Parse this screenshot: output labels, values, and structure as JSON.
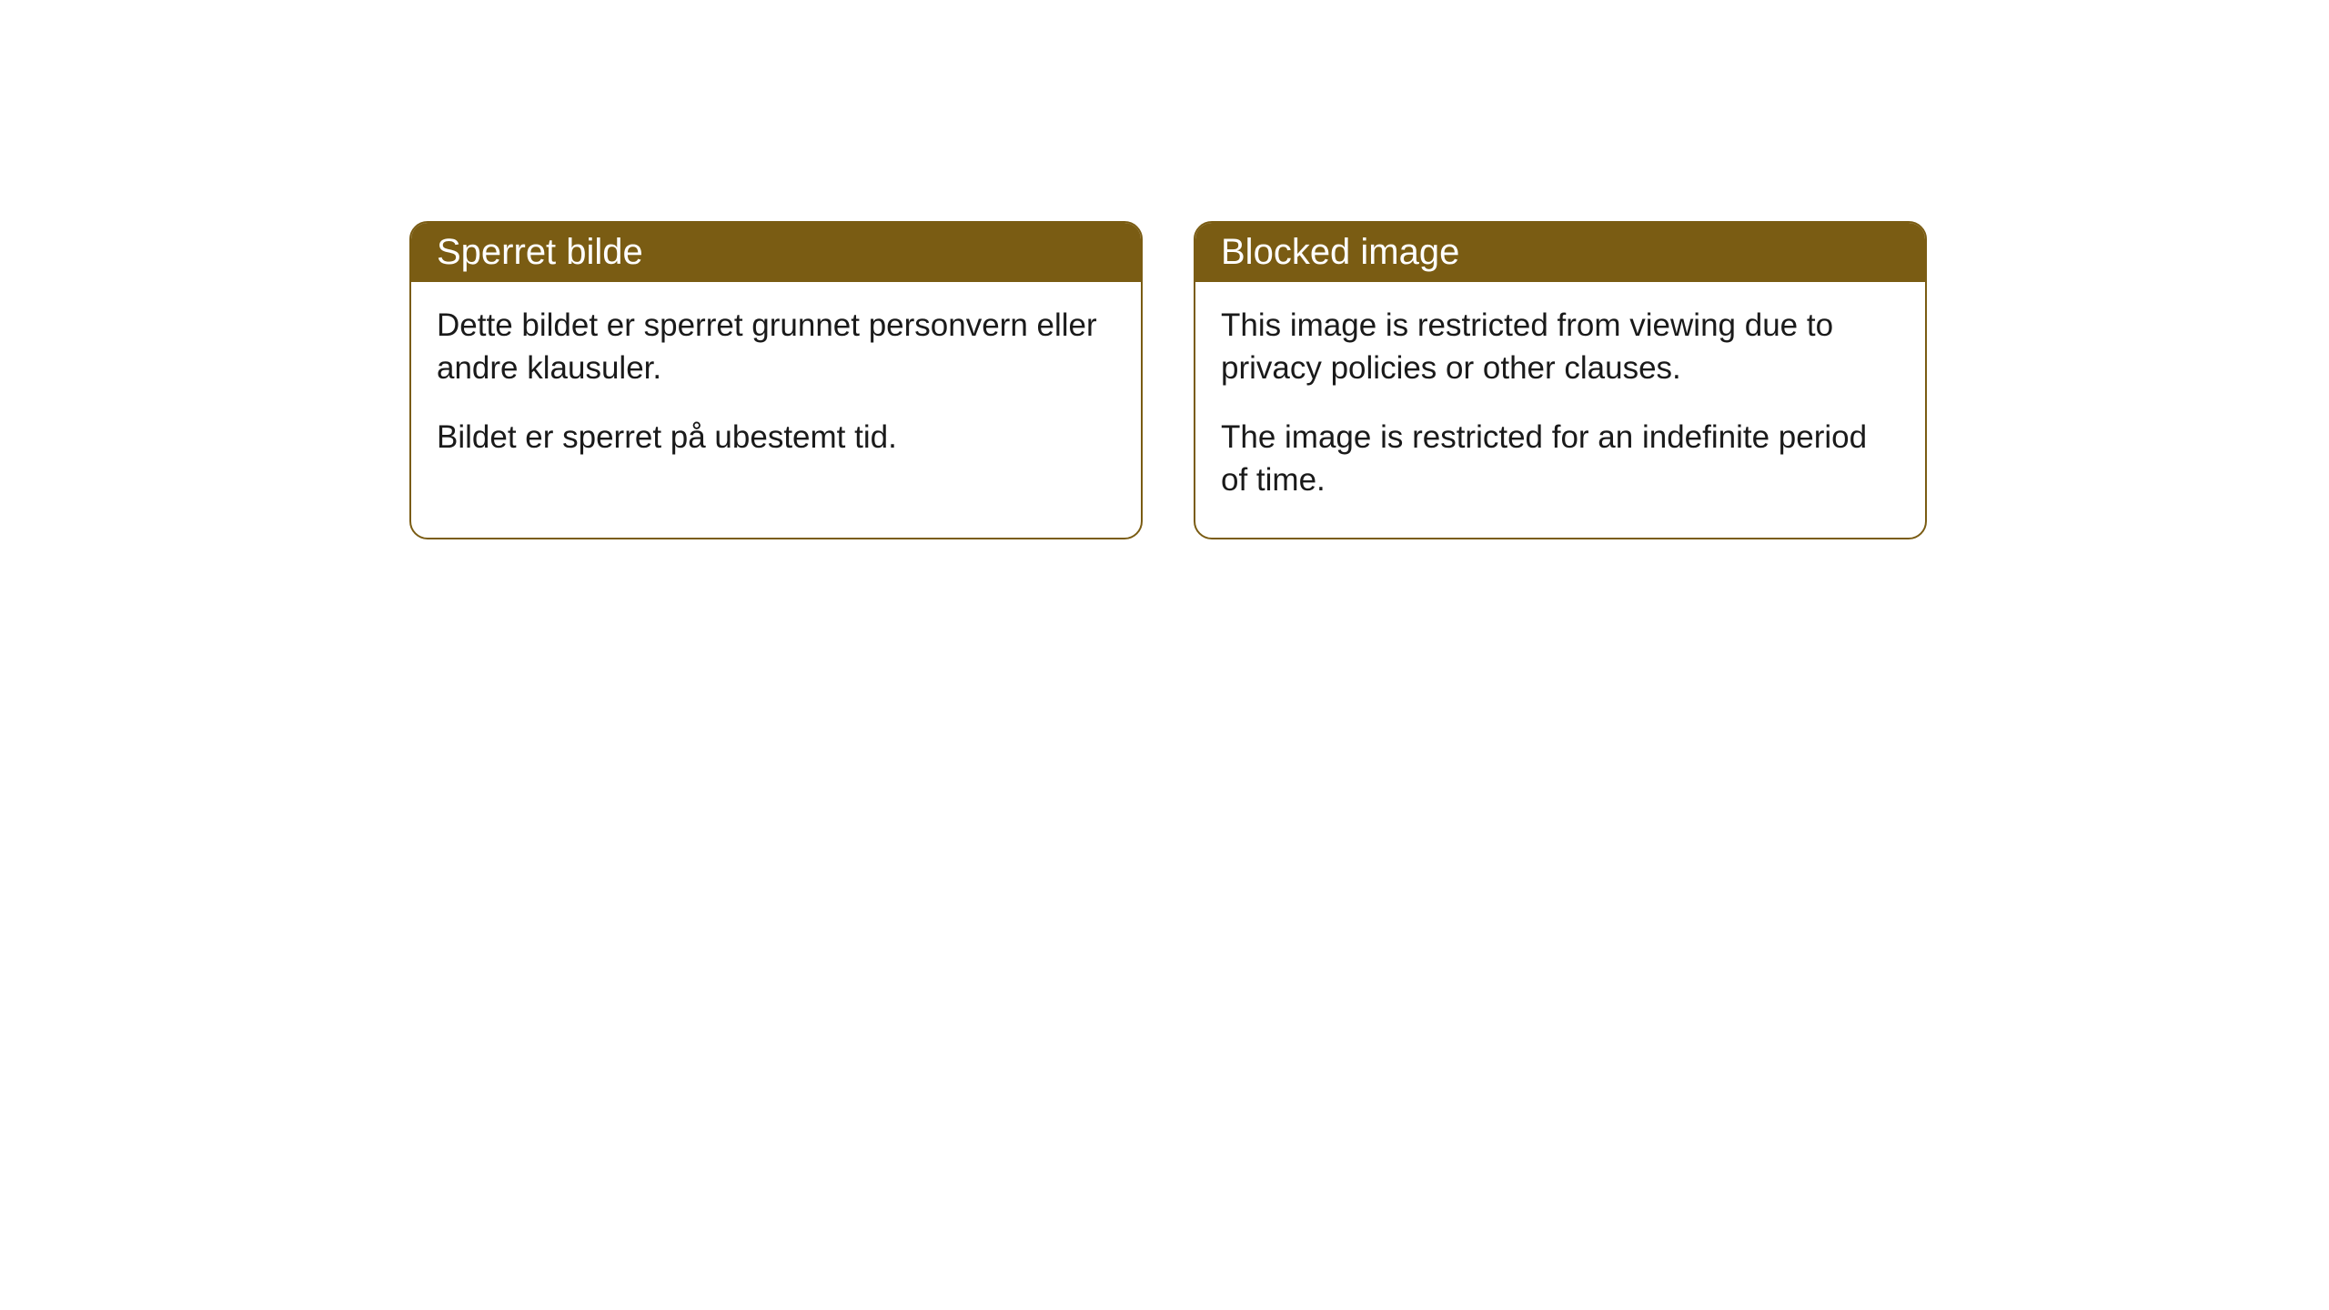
{
  "cards": [
    {
      "title": "Sperret bilde",
      "p1": "Dette bildet er sperret grunnet personvern eller andre klausuler.",
      "p2": "Bildet er sperret på ubestemt tid."
    },
    {
      "title": "Blocked image",
      "p1": "This image is restricted from viewing due to privacy policies or other clauses.",
      "p2": "The image is restricted for an indefinite period of time."
    }
  ],
  "style": {
    "header_bg": "#7a5c13",
    "header_text_color": "#ffffff",
    "border_color": "#7a5c13",
    "body_text_color": "#1a1a1a",
    "background_color": "#ffffff",
    "border_radius": 20,
    "title_fontsize": 40,
    "body_fontsize": 35
  }
}
